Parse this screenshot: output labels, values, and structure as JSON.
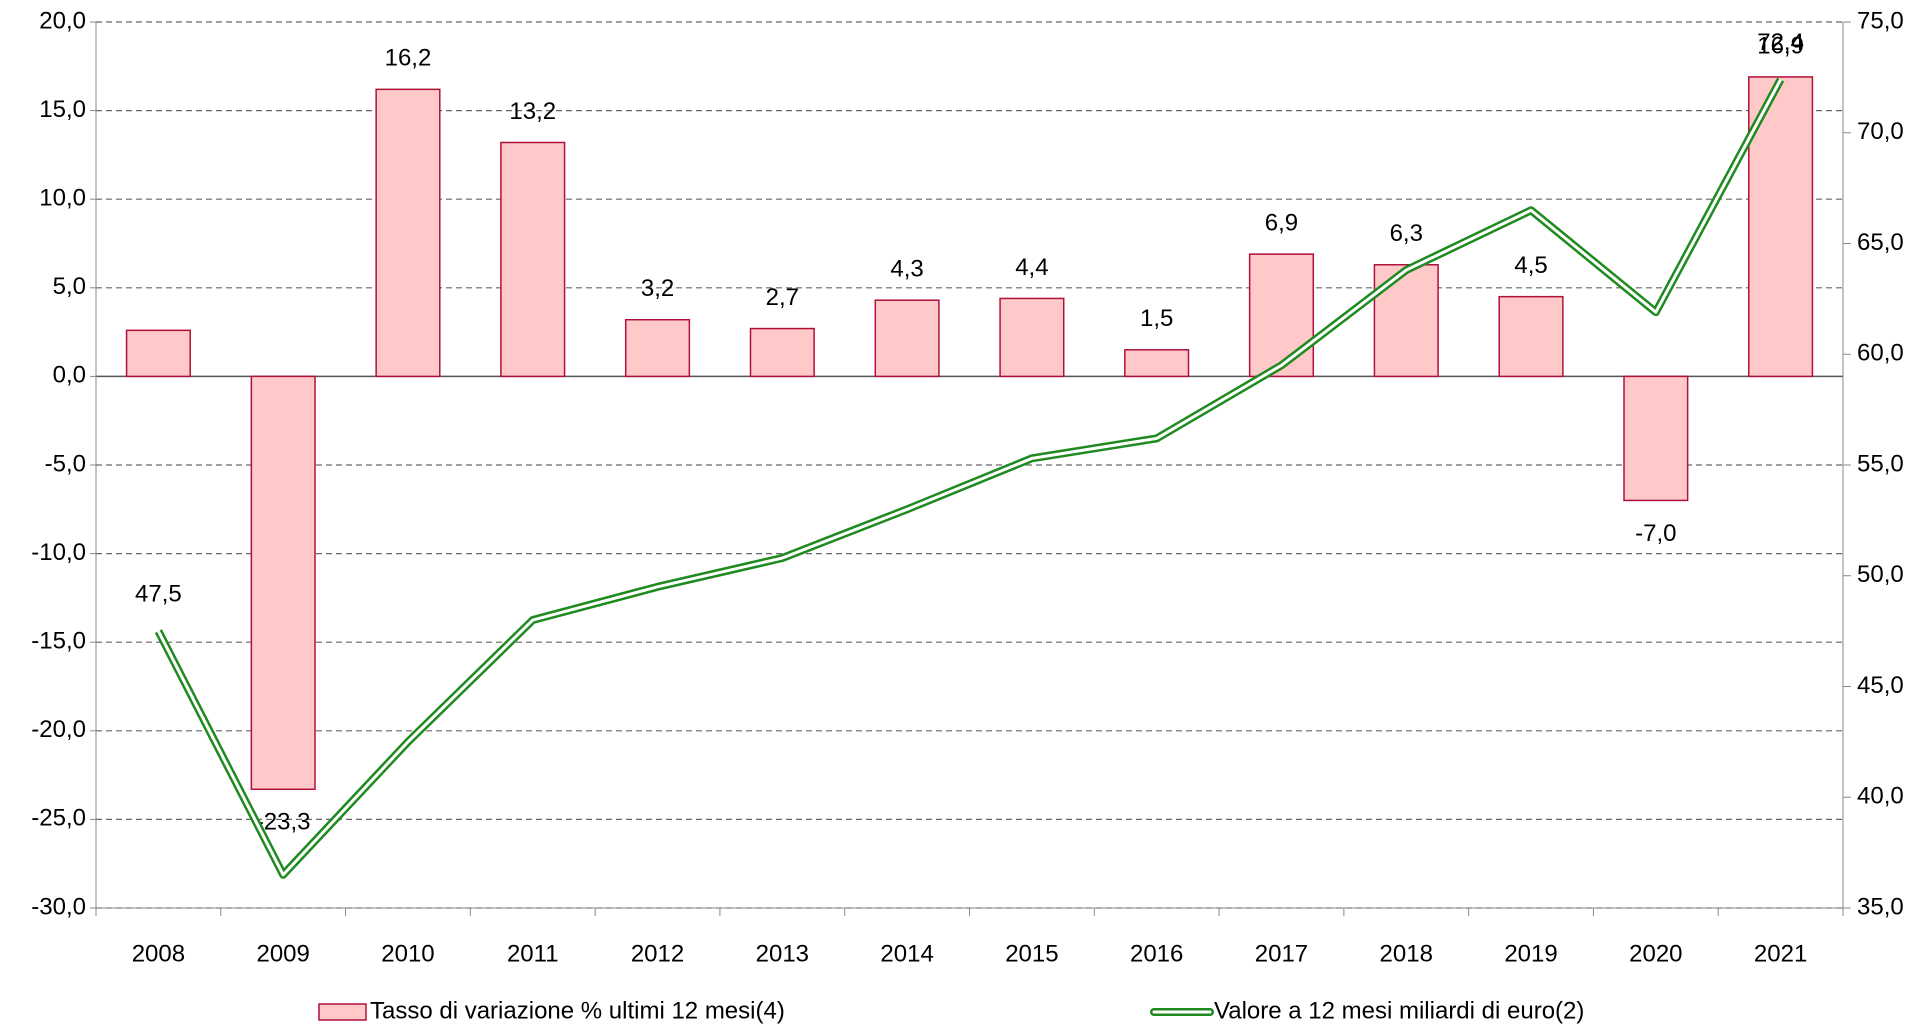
{
  "chart_data": {
    "type": "bar",
    "categories": [
      "2008",
      "2009",
      "2010",
      "2011",
      "2012",
      "2013",
      "2014",
      "2015",
      "2016",
      "2017",
      "2018",
      "2019",
      "2020",
      "2021"
    ],
    "series": [
      {
        "name": "Tasso di variazione % ultimi 12 mesi(4)",
        "type": "bar",
        "color": "#ffc9c9",
        "edge_color": "#b0103a",
        "values": [
          2.6,
          -23.3,
          16.2,
          13.2,
          3.2,
          2.7,
          4.3,
          4.4,
          1.5,
          6.9,
          6.3,
          4.5,
          -7.0,
          16.9
        ],
        "value_labels": [
          null,
          "-23,3",
          "16,2",
          "13,2",
          "3,2",
          "2,7",
          "4,3",
          "4,4",
          "1,5",
          "6,9",
          "6,3",
          "4,5",
          "-7,0",
          "16,9"
        ],
        "label_color": "#2e9a2e",
        "negative_label_color": "#ff1a1a"
      },
      {
        "name": "Valore a 12 mesi miliardi di euro(2)",
        "type": "line",
        "axis": "y2",
        "color": "#1f8a1f",
        "label_color": "#4a7a1e",
        "values": [
          47.5,
          36.5,
          42.5,
          48.0,
          49.5,
          50.8,
          53.0,
          55.3,
          56.2,
          59.5,
          63.8,
          66.5,
          61.9,
          72.4
        ],
        "value_labels": [
          "47,5",
          null,
          null,
          null,
          null,
          null,
          null,
          null,
          null,
          null,
          null,
          null,
          null,
          "72,4"
        ]
      }
    ],
    "ylim": [
      -30,
      20
    ],
    "yticks": [
      {
        "value": -30,
        "label": "-30,0"
      },
      {
        "value": -25,
        "label": "-25,0"
      },
      {
        "value": -20,
        "label": "-20,0"
      },
      {
        "value": -15,
        "label": "-15,0"
      },
      {
        "value": -10,
        "label": "-10,0"
      },
      {
        "value": -5,
        "label": "-5,0"
      },
      {
        "value": 0,
        "label": "0,0"
      },
      {
        "value": 5,
        "label": "5,0"
      },
      {
        "value": 10,
        "label": "10,0"
      },
      {
        "value": 15,
        "label": "15,0"
      },
      {
        "value": 20,
        "label": "20,0"
      }
    ],
    "y2lim": [
      35,
      75
    ],
    "y2ticks": [
      {
        "value": 35,
        "label": "35,0"
      },
      {
        "value": 40,
        "label": "40,0"
      },
      {
        "value": 45,
        "label": "45,0"
      },
      {
        "value": 50,
        "label": "50,0"
      },
      {
        "value": 55,
        "label": "55,0"
      },
      {
        "value": 60,
        "label": "60,0"
      },
      {
        "value": 65,
        "label": "65,0"
      },
      {
        "value": 70,
        "label": "70,0"
      },
      {
        "value": 75,
        "label": "75,0"
      }
    ],
    "grid": true,
    "legend": "bottom"
  }
}
